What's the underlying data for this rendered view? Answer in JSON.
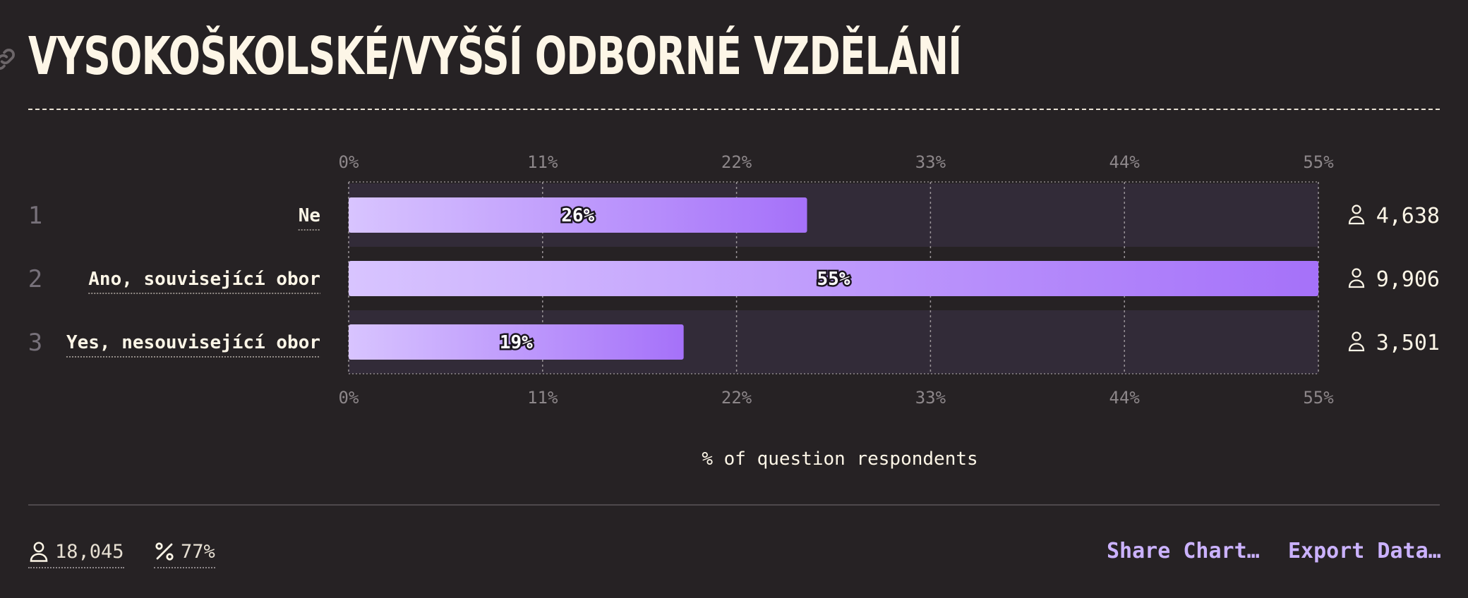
{
  "page": {
    "title": "VYSOKOŠKOLSKÉ/VYŠŠÍ ODBORNÉ VZDĚLÁNÍ",
    "colors": {
      "background": "#262224",
      "text": "#fdf6e7",
      "bar_start": "#d8c4ff",
      "bar_end": "#a571f9",
      "row_band": "#322b38",
      "accent_link": "#cbb2ff"
    }
  },
  "chart_data": {
    "type": "bar",
    "orientation": "horizontal",
    "categories": [
      "Ne",
      "Ano, související obor",
      "Yes, nesouvisející obor"
    ],
    "ranks": [
      "1",
      "2",
      "3"
    ],
    "values": [
      26,
      55,
      19
    ],
    "value_labels": [
      "26%",
      "55%",
      "19%"
    ],
    "counts": [
      "4,638",
      "9,906",
      "3,501"
    ],
    "xlim": [
      0,
      55
    ],
    "ticks": [
      "0%",
      "11%",
      "22%",
      "33%",
      "44%",
      "55%"
    ],
    "xlabel": "% of question respondents",
    "grid": true
  },
  "footer": {
    "respondents": "18,045",
    "percent": "77%",
    "share_label": "Share Chart…",
    "export_label": "Export Data…"
  },
  "icons": [
    "link-icon",
    "person-icon",
    "percent-icon"
  ]
}
